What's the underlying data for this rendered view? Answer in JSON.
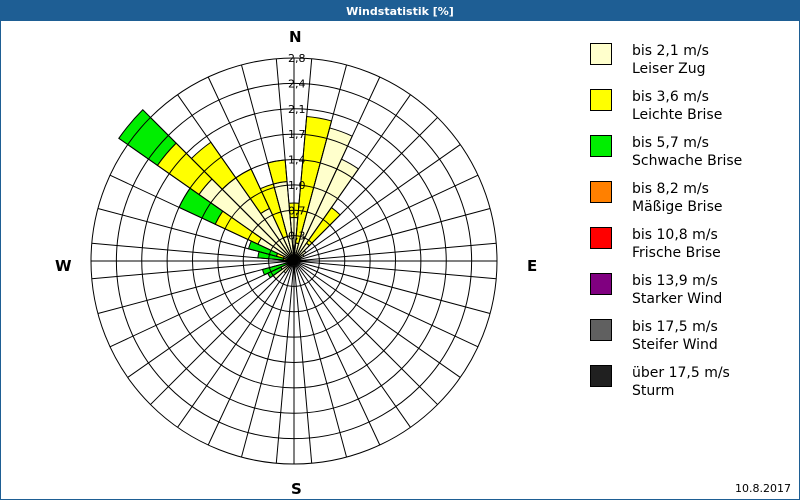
{
  "window": {
    "title": "Windstatistik [%]",
    "date": "10.8.2017"
  },
  "compass": {
    "n": "N",
    "e": "E",
    "s": "S",
    "w": "W"
  },
  "legend": [
    {
      "line1": "bis 2,1 m/s",
      "line2": "Leiser Zug",
      "color": "#ffffcc"
    },
    {
      "line1": "bis 3,6 m/s",
      "line2": "Leichte Brise",
      "color": "#ffff00"
    },
    {
      "line1": "bis 5,7 m/s",
      "line2": "Schwache Brise",
      "color": "#00ee00"
    },
    {
      "line1": "bis 8,2 m/s",
      "line2": "Mäßige Brise",
      "color": "#ff8000"
    },
    {
      "line1": "bis 10,8 m/s",
      "line2": "Frische Brise",
      "color": "#ff0000"
    },
    {
      "line1": "bis 13,9 m/s",
      "line2": "Starker Wind",
      "color": "#800080"
    },
    {
      "line1": "bis 17,5 m/s",
      "line2": "Steifer Wind",
      "color": "#606060"
    },
    {
      "line1": "über 17,5 m/s",
      "line2": "Sturm",
      "color": "#202020"
    }
  ],
  "chart_data": {
    "type": "polar-bar",
    "title": "Windstatistik [%]",
    "radial_unit": "%",
    "radial_ticks": [
      "0,3",
      "0,7",
      "1,0",
      "1,4",
      "1,7",
      "2,1",
      "2,4",
      "2,8"
    ],
    "radial_max": 2.8,
    "sector_width_deg": 10,
    "series_names": [
      "bis 2,1 m/s",
      "bis 3,6 m/s",
      "bis 5,7 m/s"
    ],
    "directions_deg": [
      0,
      10,
      20,
      30,
      40,
      50,
      60,
      70,
      80,
      90,
      100,
      110,
      120,
      130,
      140,
      150,
      160,
      170,
      180,
      190,
      200,
      210,
      220,
      230,
      240,
      250,
      260,
      270,
      280,
      290,
      300,
      310,
      320,
      330,
      340,
      350
    ],
    "series": [
      {
        "name": "bis 2,1 m/s",
        "values": [
          0.6,
          0.25,
          1.9,
          1.55,
          0.3,
          0.2,
          0.15,
          0.1,
          0.05,
          0.05,
          0.05,
          0.05,
          0.05,
          0.05,
          0.05,
          0.05,
          0.05,
          0.05,
          0.05,
          0.05,
          0.05,
          0.05,
          0.2,
          0.35,
          0.2,
          0.1,
          0.1,
          0.1,
          0.1,
          0.15,
          0.55,
          1.6,
          1.4,
          0.8,
          0.35,
          1.1
        ]
      },
      {
        "name": "bis 3,6 m/s",
        "values": [
          0.2,
          1.75,
          0.0,
          0.0,
          0.6,
          0.0,
          0.0,
          0.0,
          0.0,
          0.0,
          0.0,
          0.0,
          0.0,
          0.0,
          0.0,
          0.0,
          0.0,
          0.0,
          0.0,
          0.0,
          0.0,
          0.0,
          0.0,
          0.0,
          0.0,
          0.0,
          0.0,
          0.05,
          0.05,
          0.1,
          0.65,
          0.7,
          0.6,
          0.6,
          0.75,
          0.3
        ]
      },
      {
        "name": "bis 5,7 m/s",
        "values": [
          0,
          0,
          0,
          0,
          0,
          0,
          0,
          0,
          0,
          0,
          0,
          0,
          0,
          0,
          0,
          0,
          0,
          0,
          0,
          0,
          0,
          0,
          0,
          0,
          0.2,
          0.35,
          0.0,
          0.0,
          0.35,
          0.4,
          0.55,
          0.65,
          0.0,
          0.0,
          0.0,
          0.0
        ]
      }
    ]
  }
}
